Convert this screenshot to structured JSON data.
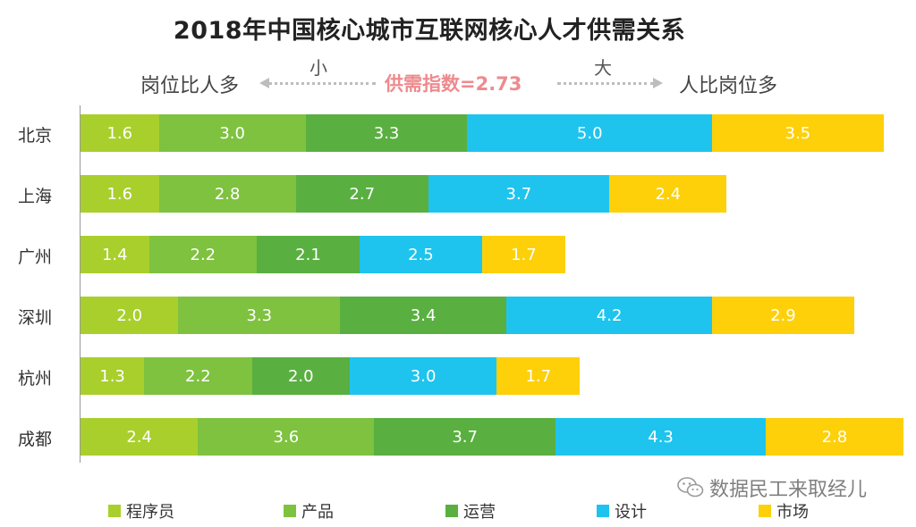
{
  "header": {
    "title": "2018年中国核心城市互联网核心人才供需关系",
    "left_label": "岗位比人多",
    "small_label": "小",
    "index_label": "供需指数=2.73",
    "large_label": "大",
    "right_label": "人比岗位多"
  },
  "colors": {
    "程序员": "#a9cf2c",
    "产品": "#7ec23f",
    "运营": "#5aaf41",
    "设计": "#1ec4ed",
    "市场": "#fdd00a",
    "index_text": "#ee8a8e",
    "arrow": "#bdbdbd"
  },
  "chart_data": {
    "type": "bar",
    "orientation": "horizontal",
    "stacked": true,
    "title": "2018年中国核心城市互联网核心人才供需关系",
    "categories": [
      "北京",
      "上海",
      "广州",
      "深圳",
      "杭州",
      "成都"
    ],
    "series": [
      {
        "name": "程序员",
        "values": [
          1.6,
          1.6,
          1.4,
          2.0,
          1.3,
          2.4
        ]
      },
      {
        "name": "产品",
        "values": [
          3.0,
          2.8,
          2.2,
          3.3,
          2.2,
          3.6
        ]
      },
      {
        "name": "运营",
        "values": [
          3.3,
          2.7,
          2.1,
          3.4,
          2.0,
          3.7
        ]
      },
      {
        "name": "设计",
        "values": [
          5.0,
          3.7,
          2.5,
          4.2,
          3.0,
          4.3
        ]
      },
      {
        "name": "市场",
        "values": [
          3.5,
          2.4,
          1.7,
          2.9,
          1.7,
          2.8
        ]
      }
    ],
    "value_format": "0.0",
    "legend_position": "bottom",
    "xlim": [
      0,
      16.9
    ]
  },
  "watermark": {
    "text": "数据民工来取经儿"
  }
}
